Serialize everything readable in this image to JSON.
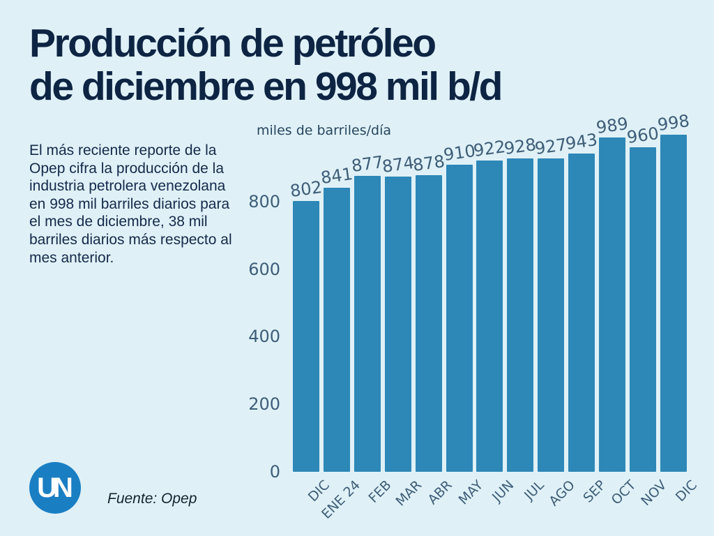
{
  "title": {
    "line1": "Producción de petróleo",
    "line2": "de diciembre en 998 mil b/d"
  },
  "description": "El más reciente reporte de la Opep cifra la producción de la industria petrolera venezolana en 998 mil barriles diarios para el mes de diciembre, 38 mil barriles diarios más respecto al mes anterior.",
  "source": "Fuente: Opep",
  "logo_text": "UN",
  "colors": {
    "background": "#dff1f7",
    "bar": "#2d87b7",
    "title_text": "#0e2443",
    "axis_text": "#3e5d78",
    "logo_blue": "#1a7ec3"
  },
  "chart_data": {
    "type": "bar",
    "title": "miles de barriles/día",
    "categories": [
      "DIC",
      "ENE 24",
      "FEB",
      "MAR",
      "ABR",
      "MAY",
      "JUN",
      "JUL",
      "AGO",
      "SEP",
      "OCT",
      "NOV",
      "DIC"
    ],
    "values": [
      802,
      841,
      877,
      874,
      878,
      910,
      922,
      928,
      927,
      943,
      989,
      960,
      998
    ],
    "xlabel": "",
    "ylabel": "miles de barriles/día",
    "yticks": [
      0,
      200,
      400,
      600,
      800
    ],
    "ylim": [
      0,
      1000
    ],
    "grid": false,
    "legend": false,
    "value_labels": true,
    "bar_color": "#2d87b7"
  }
}
